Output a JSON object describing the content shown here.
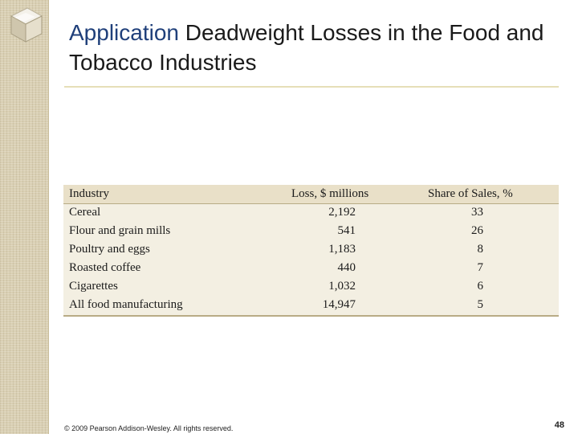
{
  "slide": {
    "title_highlight": "Application",
    "title_rest": " Deadweight Losses in the Food and Tobacco Industries",
    "footer": "© 2009 Pearson Addison-Wesley. All rights reserved.",
    "page_number": "48"
  },
  "table": {
    "headers": [
      "Industry",
      "Loss, $ millions",
      "Share of Sales, %"
    ],
    "rows": [
      [
        "Cereal",
        "2,192",
        "33"
      ],
      [
        "Flour and grain mills",
        "541",
        "26"
      ],
      [
        "Poultry and eggs",
        "1,183",
        "8"
      ],
      [
        "Roasted coffee",
        "440",
        "7"
      ],
      [
        "Cigarettes",
        "1,032",
        "6"
      ],
      [
        "All food manufacturing",
        "14,947",
        "5"
      ]
    ]
  },
  "colors": {
    "title_highlight": "#1f3f7a",
    "sidebar": "#d9cfb3",
    "table_background": "#f3efe2",
    "table_header": "#e9e0c8"
  },
  "icons": [
    "glass-cube-icon"
  ]
}
